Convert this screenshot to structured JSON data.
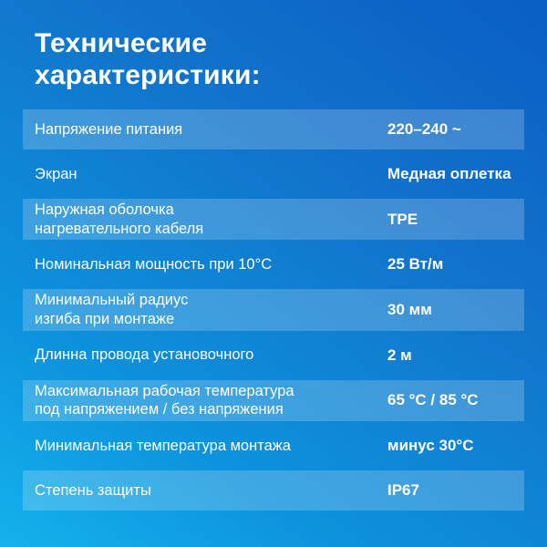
{
  "title": "Технические\nхарактеристики:",
  "colors": {
    "background_top_right": "#0a5ec4",
    "background_top_left": "#1173cb",
    "background_bottom_right": "#0a97e2",
    "background_bottom_left": "#14b2ec",
    "row_highlight": "rgba(255,255,255,0.2)",
    "text": "#ffffff"
  },
  "table": {
    "rows": [
      {
        "label": "Напряжение питания",
        "value": "220–240 ~",
        "highlighted": true
      },
      {
        "label": "Экран",
        "value": "Медная оплетка",
        "highlighted": false
      },
      {
        "label": "Наружная оболочка\nнагревательного кабеля",
        "value": "TPE",
        "highlighted": true
      },
      {
        "label": "Номинальная мощность при 10°C",
        "value": "25 Вт/м",
        "highlighted": false
      },
      {
        "label": "Минимальный радиус\nизгиба при монтаже",
        "value": "30 мм",
        "highlighted": true
      },
      {
        "label": "Длинна провода установочного",
        "value": "2 м",
        "highlighted": false
      },
      {
        "label": "Максимальная рабочая температура\nпод напряжением / без напряжения",
        "value": "65 °C / 85 °C",
        "highlighted": true
      },
      {
        "label": "Минимальная температура монтажа",
        "value": "минус 30°C",
        "highlighted": false
      },
      {
        "label": "Степень защиты",
        "value": "IP67",
        "highlighted": true
      }
    ]
  }
}
